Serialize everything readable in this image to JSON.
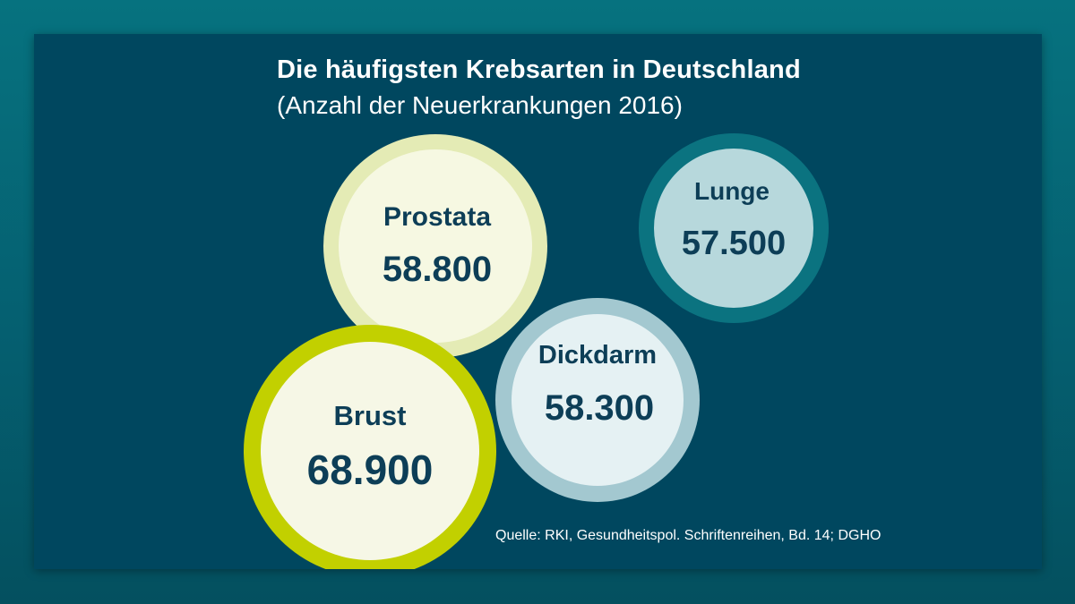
{
  "chart_data": {
    "type": "bubble",
    "title": "Die häufigsten Krebsarten in Deutschland",
    "subtitle": "(Anzahl der Neuerkrankungen 2016)",
    "categories": [
      "Prostata",
      "Lunge",
      "Dickdarm",
      "Brust"
    ],
    "values": [
      58800,
      57500,
      58300,
      68900
    ],
    "value_labels": [
      "58.800",
      "57.500",
      "58.300",
      "68.900"
    ],
    "source": "Quelle: RKI, Gesundheitspol. Schriftenreihen, Bd. 14; DGHO"
  },
  "colors": {
    "background": "#00475f",
    "text_dark": "#0d3e57",
    "prostata_ring": "#e4ebb5",
    "prostata_fill": "#f6f8e2",
    "lunge_ring": "#0b7380",
    "lunge_fill": "#b7d8dc",
    "dickdarm_ring": "#a3c8d0",
    "dickdarm_fill": "#e5f1f3",
    "brust_ring": "#c2d000",
    "brust_fill": "#f6f7e6"
  }
}
